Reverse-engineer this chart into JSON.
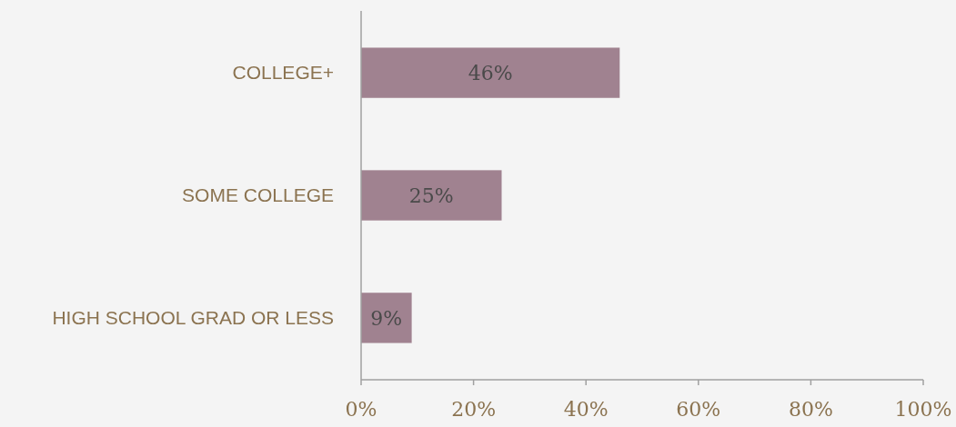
{
  "chart_data": {
    "type": "bar",
    "orientation": "horizontal",
    "categories": [
      "COLLEGE+",
      "SOME COLLEGE",
      "HIGH SCHOOL GRAD OR LESS"
    ],
    "values": [
      46,
      25,
      9
    ],
    "color": "#a08290",
    "value_labels": [
      "46%",
      "25%",
      "9%"
    ],
    "xlim": [
      0,
      100
    ],
    "xticks": [
      {
        "value": 0,
        "label": "0%"
      },
      {
        "value": 20,
        "label": "20%"
      },
      {
        "value": 40,
        "label": "40%"
      },
      {
        "value": 60,
        "label": "60%"
      },
      {
        "value": 80,
        "label": "80%"
      },
      {
        "value": 100,
        "label": "100%"
      }
    ],
    "grid": false
  }
}
